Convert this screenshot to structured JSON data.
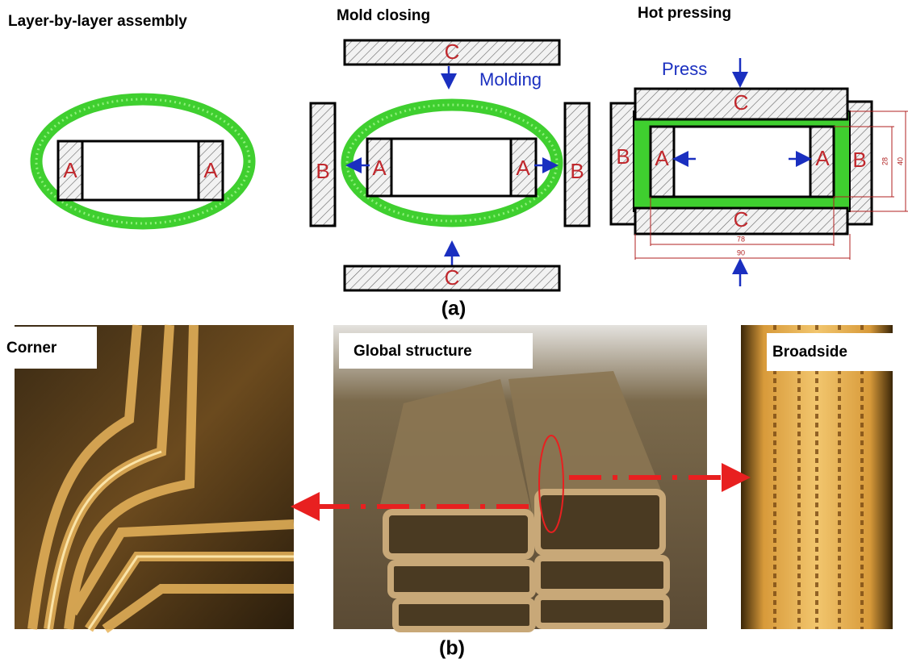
{
  "panel_a": {
    "label": "(a)",
    "steps": [
      {
        "title": "Layer-by-layer assembly",
        "parts": [
          "A",
          "A"
        ]
      },
      {
        "title": "Mold closing",
        "parts": [
          "C",
          "B",
          "A",
          "A",
          "B",
          "C"
        ],
        "annotation": "Molding"
      },
      {
        "title": "Hot pressing",
        "parts": [
          "C",
          "B",
          "A",
          "A",
          "B",
          "C"
        ],
        "annotation": "Press",
        "dimensions": [
          78,
          90,
          28,
          40
        ]
      }
    ]
  },
  "panel_b": {
    "label": "(b)",
    "photos": [
      {
        "caption": "Corner"
      },
      {
        "caption": "Global structure"
      },
      {
        "caption": "Broadside"
      }
    ]
  }
}
